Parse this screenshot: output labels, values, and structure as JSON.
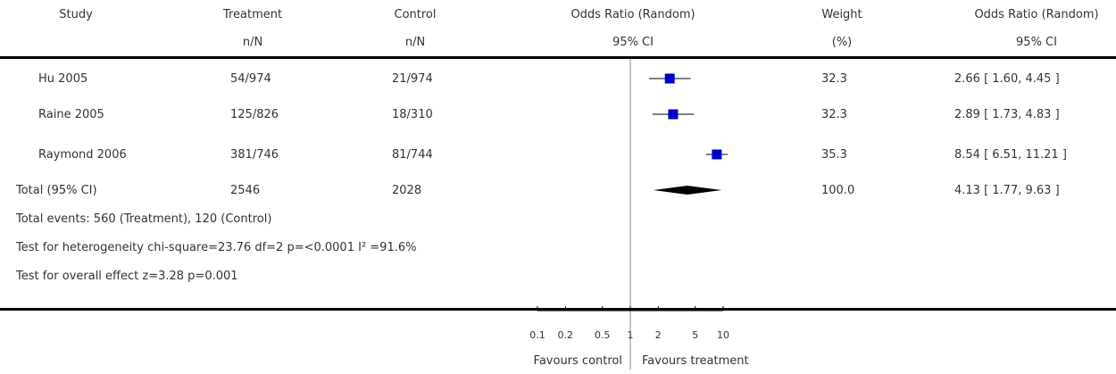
{
  "header": {
    "study": "Study",
    "treatment": "Treatment",
    "treatment_sub": "n/N",
    "control": "Control",
    "control_sub": "n/N",
    "or_plot": "Odds Ratio (Random)",
    "or_plot_sub": "95% CI",
    "weight": "Weight",
    "weight_sub": "(%)",
    "or_text": "Odds Ratio (Random)",
    "or_text_sub": "95% CI"
  },
  "studies": [
    {
      "name": "Hu 2005",
      "treatment": "54/974",
      "control": "21/974",
      "weight": "32.3",
      "ci_text": "2.66 [ 1.60, 4.45 ]"
    },
    {
      "name": "Raine 2005",
      "treatment": "125/826",
      "control": "18/310",
      "weight": "32.3",
      "ci_text": "2.89 [ 1.73, 4.83 ]"
    },
    {
      "name": "Raymond 2006",
      "treatment": "381/746",
      "control": "81/744",
      "weight": "35.3",
      "ci_text": "8.54 [ 6.51, 11.21 ]"
    }
  ],
  "total": {
    "label": "Total (95% CI)",
    "treatment": "2546",
    "control": "2028",
    "weight": "100.0",
    "ci_text": "4.13 [ 1.77, 9.63 ]"
  },
  "footnotes": {
    "events": "Total events: 560 (Treatment), 120 (Control)",
    "heterogeneity": "Test for heterogeneity chi-square=23.76 df=2 p=<0.0001 I² =91.6%",
    "overall": "Test for overall effect z=3.28   p=0.001"
  },
  "axis": {
    "favours_left": "Favours control",
    "favours_right": "Favours treatment"
  },
  "chart_data": {
    "type": "forest",
    "scale": "log",
    "xlim": [
      0.1,
      10
    ],
    "ticks": [
      0.1,
      0.2,
      0.5,
      1,
      2,
      5,
      10
    ],
    "tick_labels": [
      "0.1",
      "0.2",
      "0.5",
      "1",
      "2",
      "5",
      "10"
    ],
    "reference_line": 1,
    "point_color": "#0000cc",
    "diamond_color": "#000000",
    "estimates": [
      {
        "study": "Hu 2005",
        "or": 2.66,
        "lower": 1.6,
        "upper": 4.45,
        "weight": 32.3
      },
      {
        "study": "Raine 2005",
        "or": 2.89,
        "lower": 1.73,
        "upper": 4.83,
        "weight": 32.3
      },
      {
        "study": "Raymond 2006",
        "or": 8.54,
        "lower": 6.51,
        "upper": 11.21,
        "weight": 35.3
      }
    ],
    "pooled": {
      "or": 4.13,
      "lower": 1.77,
      "upper": 9.63
    }
  }
}
